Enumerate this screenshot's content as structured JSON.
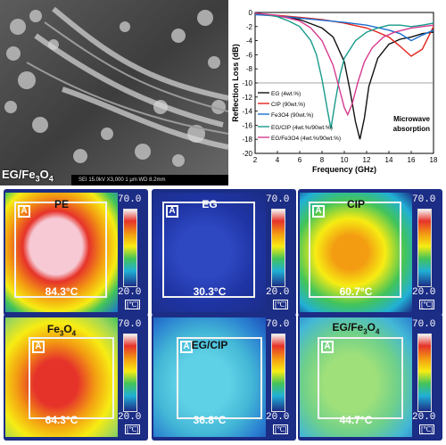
{
  "sem": {
    "label": "EG/Fe3O4",
    "label_sub": "3",
    "label_sub2": "4",
    "info_bar": "SEI    15.0kV   X3,000    1 μm    WD 8.2mm"
  },
  "chart_data": {
    "type": "line",
    "xlabel": "Frequency (GHz)",
    "ylabel": "Reflection Loss (dB)",
    "xlim": [
      2,
      18
    ],
    "ylim": [
      -20,
      0
    ],
    "xticks": [
      2,
      4,
      6,
      8,
      10,
      12,
      14,
      16,
      18
    ],
    "yticks": [
      0,
      -2,
      -4,
      -6,
      -8,
      -10,
      -12,
      -14,
      -16,
      -18,
      -20
    ],
    "reference_line": -10,
    "annotation": "Microwave absorption",
    "series": [
      {
        "name": "EG (4wt.%)",
        "color": "#111111",
        "x": [
          2,
          4,
          6,
          8,
          9,
          10,
          10.5,
          11,
          11.4,
          11.8,
          12.2,
          13,
          14,
          15,
          16,
          17,
          18
        ],
        "y": [
          -0.2,
          -0.5,
          -1.0,
          -2.2,
          -3.5,
          -7.0,
          -11.0,
          -15.5,
          -18.0,
          -15.0,
          -10.5,
          -6.5,
          -4.5,
          -3.8,
          -3.5,
          -3.0,
          -2.8
        ]
      },
      {
        "name": "CIP (90wt.%)",
        "color": "#e2231a",
        "x": [
          2,
          4,
          6,
          8,
          10,
          12,
          13,
          14,
          15,
          16,
          17,
          18
        ],
        "y": [
          -0.2,
          -0.4,
          -0.7,
          -1.0,
          -1.5,
          -2.2,
          -2.8,
          -3.5,
          -4.8,
          -6.2,
          -5.2,
          -2.0
        ]
      },
      {
        "name": "Fe3O4 (90wt.%)",
        "color": "#1a6fd1",
        "x": [
          2,
          4,
          6,
          8,
          10,
          12,
          14,
          15,
          16,
          17,
          18
        ],
        "y": [
          -0.3,
          -0.5,
          -0.8,
          -1.1,
          -1.4,
          -1.8,
          -2.5,
          -3.0,
          -4.0,
          -3.2,
          -2.5
        ]
      },
      {
        "name": "EG/CIP (4wt.%/90wt.%)",
        "color": "#189a8a",
        "x": [
          2,
          3,
          4,
          5,
          6,
          7,
          7.5,
          8,
          8.5,
          8.8,
          9.2,
          9.6,
          10,
          11,
          12,
          13,
          14,
          15,
          16,
          17,
          18
        ],
        "y": [
          -0.1,
          -0.3,
          -0.6,
          -1.2,
          -2.0,
          -4.0,
          -6.0,
          -9.5,
          -14.0,
          -16.5,
          -12.5,
          -9.0,
          -6.5,
          -4.0,
          -2.8,
          -2.2,
          -1.8,
          -1.8,
          -2.0,
          -1.8,
          -1.5
        ]
      },
      {
        "name": "EG/Fe3O4 (4wt.%/90wt.%)",
        "color": "#d63a8e",
        "x": [
          2,
          4,
          6,
          7,
          8,
          9,
          9.5,
          10,
          10.3,
          10.7,
          11.2,
          11.8,
          12.5,
          13.5,
          14.5,
          16,
          17,
          18
        ],
        "y": [
          -0.1,
          -0.4,
          -1.2,
          -2.2,
          -4.0,
          -7.5,
          -10.5,
          -13.5,
          -14.5,
          -13.0,
          -10.0,
          -7.0,
          -5.0,
          -3.5,
          -2.8,
          -2.2,
          -2.0,
          -1.8
        ]
      }
    ]
  },
  "thermal": {
    "scale_max": "70.0",
    "scale_min": "20.0",
    "unit": "[℃]",
    "tiles": [
      {
        "label": "PE",
        "temp": "84.3°C"
      },
      {
        "label": "EG",
        "temp": "30.3°C"
      },
      {
        "label": "CIP",
        "temp": "60.7°C"
      },
      {
        "label": "Fe3O4",
        "temp": "64.3°C"
      },
      {
        "label": "EG/CIP",
        "temp": "36.8°C"
      },
      {
        "label": "EG/Fe3O4",
        "temp": "44.7°C"
      }
    ]
  }
}
